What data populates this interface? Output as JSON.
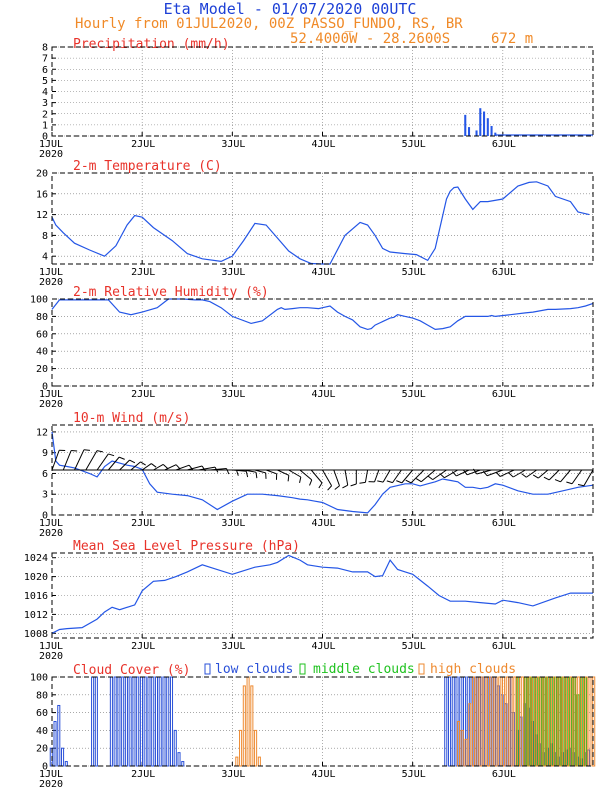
{
  "header": {
    "title": "Eta Model - 01/07/2020 00UTC",
    "subtitle": "Hourly from 01JUL2020, 00Z  PASSO_FUNDO, RS, BR",
    "coords": "52.4000W - 28.2600S",
    "elevation": "672  m"
  },
  "colors": {
    "title": "#1c3fd6",
    "header": "#f08a28",
    "panel_title": "#e8322a",
    "series": "#2456e6",
    "low": "#2a50d8",
    "middle": "#1fc21f",
    "high": "#ee8a30"
  },
  "chart_data": [
    {
      "id": "precip",
      "type": "bar",
      "title": "Precipitation (mm/h)",
      "ylim": [
        0,
        8
      ],
      "yticks": [
        0,
        1,
        2,
        3,
        4,
        5,
        6,
        7,
        8
      ],
      "xlabel_days": [
        "1JUL",
        "2JUL",
        "3JUL",
        "4JUL",
        "5JUL",
        "6JUL"
      ],
      "year": "2020",
      "x_hours": [
        110,
        111,
        112,
        113,
        114,
        115,
        116,
        117,
        118,
        119,
        120
      ],
      "values": [
        1.9,
        0.8,
        0,
        0.5,
        2.5,
        2.2,
        1.6,
        0.9,
        0.3,
        0.1,
        0
      ]
    },
    {
      "id": "temp",
      "type": "line",
      "title": "2-m Temperature (C)",
      "ylim": [
        2.5,
        20
      ],
      "yticks": [
        4,
        8,
        12,
        16,
        20
      ],
      "xlabel_days": [
        "1JUL",
        "2JUL",
        "3JUL",
        "4JUL",
        "5JUL",
        "6JUL"
      ],
      "year": "2020",
      "x_hours": [
        0,
        1,
        3,
        6,
        10,
        14,
        17,
        20,
        22,
        24,
        27,
        32,
        36,
        40,
        45,
        48,
        51,
        54,
        57,
        60,
        63,
        66,
        69,
        72,
        74,
        78,
        82,
        84,
        86,
        88,
        90,
        94,
        97,
        100,
        102,
        105,
        106,
        107,
        108,
        110,
        112,
        114,
        116,
        120,
        124,
        127,
        129,
        132,
        134,
        138,
        140,
        143
      ],
      "values": [
        11.5,
        10.0,
        8.5,
        6.5,
        5.2,
        4.0,
        6.0,
        10.0,
        11.8,
        11.5,
        9.5,
        7.0,
        4.5,
        3.5,
        3.0,
        4.0,
        7.0,
        10.3,
        10.0,
        7.5,
        5.0,
        3.5,
        2.6,
        2.5,
        2.5,
        8.0,
        10.5,
        10.0,
        8.0,
        5.5,
        4.8,
        4.5,
        4.3,
        3.2,
        5.5,
        15.0,
        16.5,
        17.2,
        17.3,
        15.0,
        13.0,
        14.5,
        14.5,
        15.0,
        17.5,
        18.2,
        18.3,
        17.5,
        15.5,
        14.5,
        12.5,
        12.0
      ]
    },
    {
      "id": "rh",
      "type": "line",
      "title": "2-m Relative Humidity (%)",
      "ylim": [
        0,
        100
      ],
      "yticks": [
        0,
        20,
        40,
        60,
        80,
        100
      ],
      "xlabel_days": [
        "1JUL",
        "2JUL",
        "3JUL",
        "4JUL",
        "5JUL",
        "6JUL"
      ],
      "year": "2020",
      "x_hours": [
        0,
        2,
        8,
        12,
        15,
        18,
        21,
        24,
        28,
        31,
        35,
        38,
        40,
        42,
        45,
        48,
        53,
        56,
        60,
        61,
        62,
        64,
        66,
        68,
        71,
        72,
        74,
        76,
        78,
        80,
        82,
        84,
        85,
        86,
        88,
        90,
        91,
        92,
        94,
        96,
        98,
        100,
        102,
        104,
        106,
        108,
        110,
        112,
        114,
        116,
        117,
        118,
        122,
        126,
        128,
        132,
        134,
        138,
        140,
        142,
        144
      ],
      "values": [
        88,
        99,
        99,
        99,
        99,
        85,
        82,
        85,
        90,
        100,
        100,
        99,
        99,
        97,
        90,
        80,
        72,
        75,
        88,
        90,
        88,
        89,
        90,
        90,
        89,
        90,
        92,
        85,
        80,
        76,
        68,
        65,
        66,
        70,
        74,
        78,
        79,
        82,
        80,
        78,
        75,
        70,
        65,
        66,
        68,
        75,
        80,
        80,
        80,
        80,
        81,
        80,
        82,
        84,
        85,
        88,
        88,
        89,
        90,
        92,
        95
      ]
    },
    {
      "id": "wind",
      "type": "line",
      "title": "10-m Wind (m/s)",
      "ylim": [
        0,
        13
      ],
      "yticks": [
        0,
        3,
        6,
        9,
        12
      ],
      "xlabel_days": [
        "1JUL",
        "2JUL",
        "3JUL",
        "4JUL",
        "5JUL",
        "6JUL"
      ],
      "year": "2020",
      "x_hours": [
        0,
        1,
        2,
        4,
        6,
        10,
        12,
        14,
        16,
        18,
        20,
        22,
        24,
        26,
        28,
        32,
        36,
        40,
        44,
        48,
        52,
        56,
        60,
        64,
        66,
        68,
        70,
        72,
        76,
        80,
        84,
        86,
        88,
        90,
        94,
        96,
        98,
        100,
        102,
        104,
        106,
        108,
        110,
        112,
        114,
        116,
        118,
        120,
        124,
        128,
        132,
        136,
        140,
        144
      ],
      "values": [
        12,
        7.8,
        7.2,
        7.0,
        6.8,
        6.0,
        5.5,
        7.0,
        7.8,
        7.5,
        7.2,
        7.0,
        6.6,
        4.5,
        3.3,
        3.0,
        2.8,
        2.2,
        0.8,
        2.0,
        3.0,
        3.0,
        2.8,
        2.5,
        2.3,
        2.2,
        2.0,
        1.8,
        0.8,
        0.5,
        0.3,
        1.5,
        3.0,
        4.0,
        4.5,
        4.5,
        4.2,
        4.5,
        4.8,
        5.2,
        5.0,
        4.8,
        4.0,
        4.0,
        3.8,
        4.0,
        4.5,
        4.3,
        3.5,
        3.0,
        3.0,
        3.5,
        4.0,
        4.3
      ],
      "barb_row": 6.5,
      "barb_hours": [
        0,
        3,
        6,
        9,
        12,
        15,
        18,
        21,
        24,
        27,
        30,
        33,
        36,
        39,
        42,
        45,
        48,
        51,
        54,
        57,
        60,
        63,
        66,
        69,
        72,
        75,
        78,
        81,
        84,
        87,
        90,
        93,
        96,
        99,
        102,
        105,
        108,
        111,
        114,
        117,
        120,
        123,
        126,
        129,
        132,
        135,
        138,
        141,
        144
      ],
      "barb_dir_deg": [
        20,
        22,
        25,
        30,
        35,
        40,
        45,
        50,
        55,
        60,
        65,
        70,
        75,
        80,
        85,
        90,
        95,
        100,
        105,
        110,
        115,
        120,
        130,
        140,
        150,
        160,
        170,
        180,
        190,
        200,
        210,
        215,
        220,
        225,
        230,
        235,
        240,
        245,
        250,
        255,
        250,
        245,
        240,
        235,
        230,
        225,
        220,
        215,
        210
      ],
      "barb_len": [
        1.5,
        1.5,
        1.6,
        1.6,
        1.4,
        1.2,
        1.0,
        0.9,
        0.8,
        0.8,
        0.9,
        1.0,
        1.1,
        1.2,
        1.2,
        1.1,
        1.0,
        0.9,
        0.8,
        0.8,
        0.9,
        1.0,
        1.1,
        1.2,
        1.3,
        1.2,
        1.1,
        1.0,
        0.9,
        0.9,
        1.0,
        1.1,
        1.2,
        1.3,
        1.3,
        1.2,
        1.1,
        1.0,
        1.0,
        1.1,
        1.2,
        1.1,
        1.0,
        0.9,
        0.9,
        1.0,
        1.1,
        1.2,
        1.3
      ]
    },
    {
      "id": "pres",
      "type": "line",
      "title": "Mean Sea Level Pressure (hPa)",
      "ylim": [
        1007,
        1025
      ],
      "yticks": [
        1008,
        1012,
        1016,
        1020,
        1024
      ],
      "xlabel_days": [
        "1JUL",
        "2JUL",
        "3JUL",
        "4JUL",
        "5JUL",
        "6JUL"
      ],
      "year": "2020",
      "x_hours": [
        0,
        2,
        4,
        8,
        12,
        14,
        16,
        18,
        22,
        24,
        27,
        30,
        33,
        36,
        40,
        42,
        48,
        50,
        54,
        58,
        60,
        62,
        63,
        66,
        68,
        72,
        76,
        80,
        84,
        86,
        88,
        90,
        92,
        94,
        96,
        100,
        103,
        106,
        110,
        114,
        118,
        120,
        124,
        128,
        134,
        138,
        144
      ],
      "values": [
        1008,
        1008.8,
        1009,
        1009.2,
        1011,
        1012.5,
        1013.5,
        1013,
        1014,
        1017,
        1019,
        1019.2,
        1020,
        1021,
        1022.5,
        1022,
        1020.5,
        1021,
        1022,
        1022.5,
        1023,
        1024,
        1024.5,
        1023.5,
        1022.5,
        1022,
        1021.8,
        1021,
        1021,
        1020,
        1020.2,
        1023.5,
        1021.5,
        1021,
        1020.5,
        1018,
        1016,
        1014.8,
        1014.8,
        1014.5,
        1014.2,
        1015,
        1014.5,
        1013.8,
        1015.5,
        1016.5,
        1016.5
      ]
    },
    {
      "id": "cloud",
      "type": "bar",
      "title": "Cloud Cover (%)",
      "ylim": [
        0,
        100
      ],
      "yticks": [
        0,
        20,
        40,
        60,
        80,
        100
      ],
      "xlabel_days": [
        "1JUL",
        "2JUL",
        "3JUL",
        "4JUL",
        "5JUL",
        "6JUL"
      ],
      "year": "2020",
      "series": [
        {
          "name": "low clouds",
          "x_hours": [
            0,
            1,
            2,
            3,
            4,
            11,
            12,
            16,
            17,
            18,
            19,
            20,
            21,
            22,
            23,
            24,
            25,
            26,
            27,
            28,
            29,
            30,
            31,
            32,
            33,
            34,
            35,
            105,
            106,
            107,
            108,
            109,
            110,
            111,
            112,
            113,
            114,
            115,
            116,
            117,
            118,
            119,
            120,
            121,
            122,
            123,
            124,
            125,
            126,
            127,
            128,
            129,
            130,
            131,
            132,
            133,
            134,
            135,
            136,
            137,
            138,
            139,
            140,
            141,
            142,
            143
          ],
          "values": [
            20,
            50,
            68,
            20,
            5,
            100,
            100,
            100,
            100,
            100,
            100,
            100,
            100,
            100,
            100,
            100,
            100,
            100,
            100,
            100,
            100,
            100,
            100,
            100,
            40,
            15,
            5,
            100,
            100,
            100,
            100,
            100,
            100,
            100,
            100,
            100,
            100,
            100,
            100,
            100,
            100,
            90,
            80,
            70,
            100,
            60,
            40,
            55,
            70,
            65,
            50,
            35,
            25,
            15,
            20,
            25,
            15,
            10,
            15,
            18,
            20,
            15,
            10,
            8,
            15,
            18
          ]
        },
        {
          "name": "middle clouds",
          "x_hours": [
            124,
            126,
            127,
            128,
            129,
            130,
            131,
            132,
            133,
            134,
            135,
            136,
            137,
            138,
            139,
            140,
            141,
            142
          ],
          "values": [
            100,
            100,
            100,
            100,
            100,
            100,
            100,
            100,
            100,
            100,
            100,
            100,
            100,
            100,
            100,
            80,
            100,
            100
          ]
        },
        {
          "name": "high clouds",
          "x_hours": [
            49,
            50,
            51,
            52,
            53,
            54,
            55,
            108,
            109,
            110,
            111,
            112,
            113,
            114,
            115,
            116,
            117,
            118,
            119,
            120,
            121,
            122,
            123,
            124,
            125,
            126,
            127,
            128,
            129,
            130,
            131,
            132,
            133,
            134,
            135,
            136,
            137,
            138,
            139,
            140,
            141,
            142,
            143,
            144
          ],
          "values": [
            10,
            40,
            90,
            100,
            90,
            40,
            10,
            50,
            40,
            30,
            70,
            100,
            100,
            100,
            100,
            100,
            100,
            100,
            100,
            100,
            100,
            100,
            100,
            100,
            100,
            100,
            100,
            100,
            100,
            100,
            100,
            100,
            100,
            100,
            100,
            100,
            100,
            100,
            100,
            100,
            100,
            100,
            100,
            100
          ]
        }
      ]
    }
  ]
}
